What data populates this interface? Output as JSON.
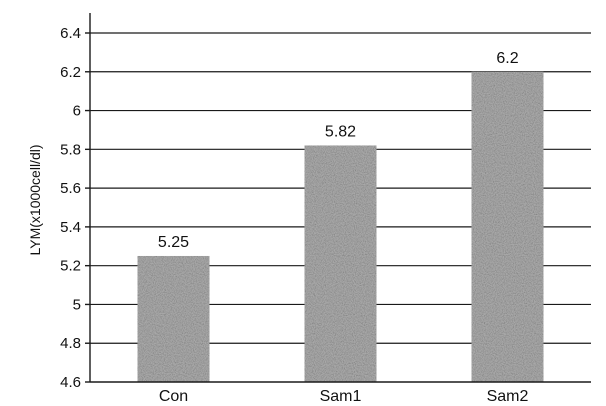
{
  "chart_data": {
    "type": "bar",
    "categories": [
      "Con",
      "Sam1",
      "Sam2"
    ],
    "values": [
      5.25,
      5.82,
      6.2
    ],
    "data_labels": [
      "5.25",
      "5.82",
      "6.2"
    ],
    "ylabel": "LYM(x1000cell/dl)",
    "ylim": [
      4.6,
      6.4
    ],
    "yticks": [
      "4.6",
      "4.8",
      "5",
      "5.2",
      "5.4",
      "5.6",
      "5.8",
      "6",
      "6.2",
      "6.4"
    ],
    "grid": true,
    "bar_color": "#a8a8a8"
  }
}
